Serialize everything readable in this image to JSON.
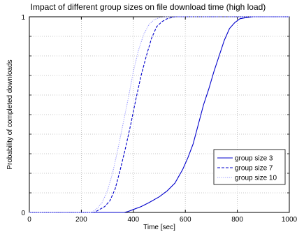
{
  "chart_data": {
    "type": "line",
    "title": "Impact of different group sizes on file download time (high load)",
    "xlabel": "Time [sec]",
    "ylabel": "Probability of completed downloads",
    "xlim": [
      0,
      1000
    ],
    "ylim": [
      0,
      1
    ],
    "x_ticks": [
      0,
      200,
      400,
      600,
      800,
      1000
    ],
    "y_ticks": [
      0,
      1
    ],
    "y_minor_grid": [
      0.1,
      0.2,
      0.3,
      0.4,
      0.5,
      0.6,
      0.7,
      0.8,
      0.9
    ],
    "grid": true,
    "legend_position": "lower-right",
    "series": [
      {
        "name": "group size 3",
        "color": "#0000cc",
        "dash": "solid",
        "x": [
          0,
          365,
          380,
          400,
          430,
          460,
          500,
          530,
          560,
          590,
          610,
          630,
          650,
          670,
          690,
          710,
          730,
          750,
          770,
          790,
          810,
          830,
          860,
          1000
        ],
        "y": [
          0,
          0,
          0.005,
          0.015,
          0.03,
          0.05,
          0.08,
          0.11,
          0.15,
          0.22,
          0.28,
          0.35,
          0.45,
          0.55,
          0.63,
          0.72,
          0.8,
          0.88,
          0.94,
          0.97,
          0.99,
          0.995,
          1.0,
          1.0
        ]
      },
      {
        "name": "group size 7",
        "color": "#0000cc",
        "dash": "dashed",
        "x": [
          0,
          250,
          270,
          290,
          310,
          330,
          350,
          370,
          390,
          410,
          430,
          450,
          470,
          490,
          510,
          530,
          560,
          1000
        ],
        "y": [
          0,
          0,
          0.015,
          0.03,
          0.06,
          0.12,
          0.22,
          0.33,
          0.45,
          0.58,
          0.7,
          0.8,
          0.89,
          0.95,
          0.975,
          0.99,
          1.0,
          1.0
        ]
      },
      {
        "name": "group size 10",
        "color": "#9a9aff",
        "dash": "dotted",
        "x": [
          0,
          240,
          260,
          280,
          300,
          320,
          340,
          360,
          380,
          400,
          420,
          440,
          460,
          480,
          500,
          520,
          1000
        ],
        "y": [
          0,
          0,
          0.02,
          0.05,
          0.11,
          0.2,
          0.32,
          0.45,
          0.58,
          0.72,
          0.83,
          0.91,
          0.96,
          0.985,
          0.995,
          1.0,
          1.0
        ]
      }
    ]
  }
}
